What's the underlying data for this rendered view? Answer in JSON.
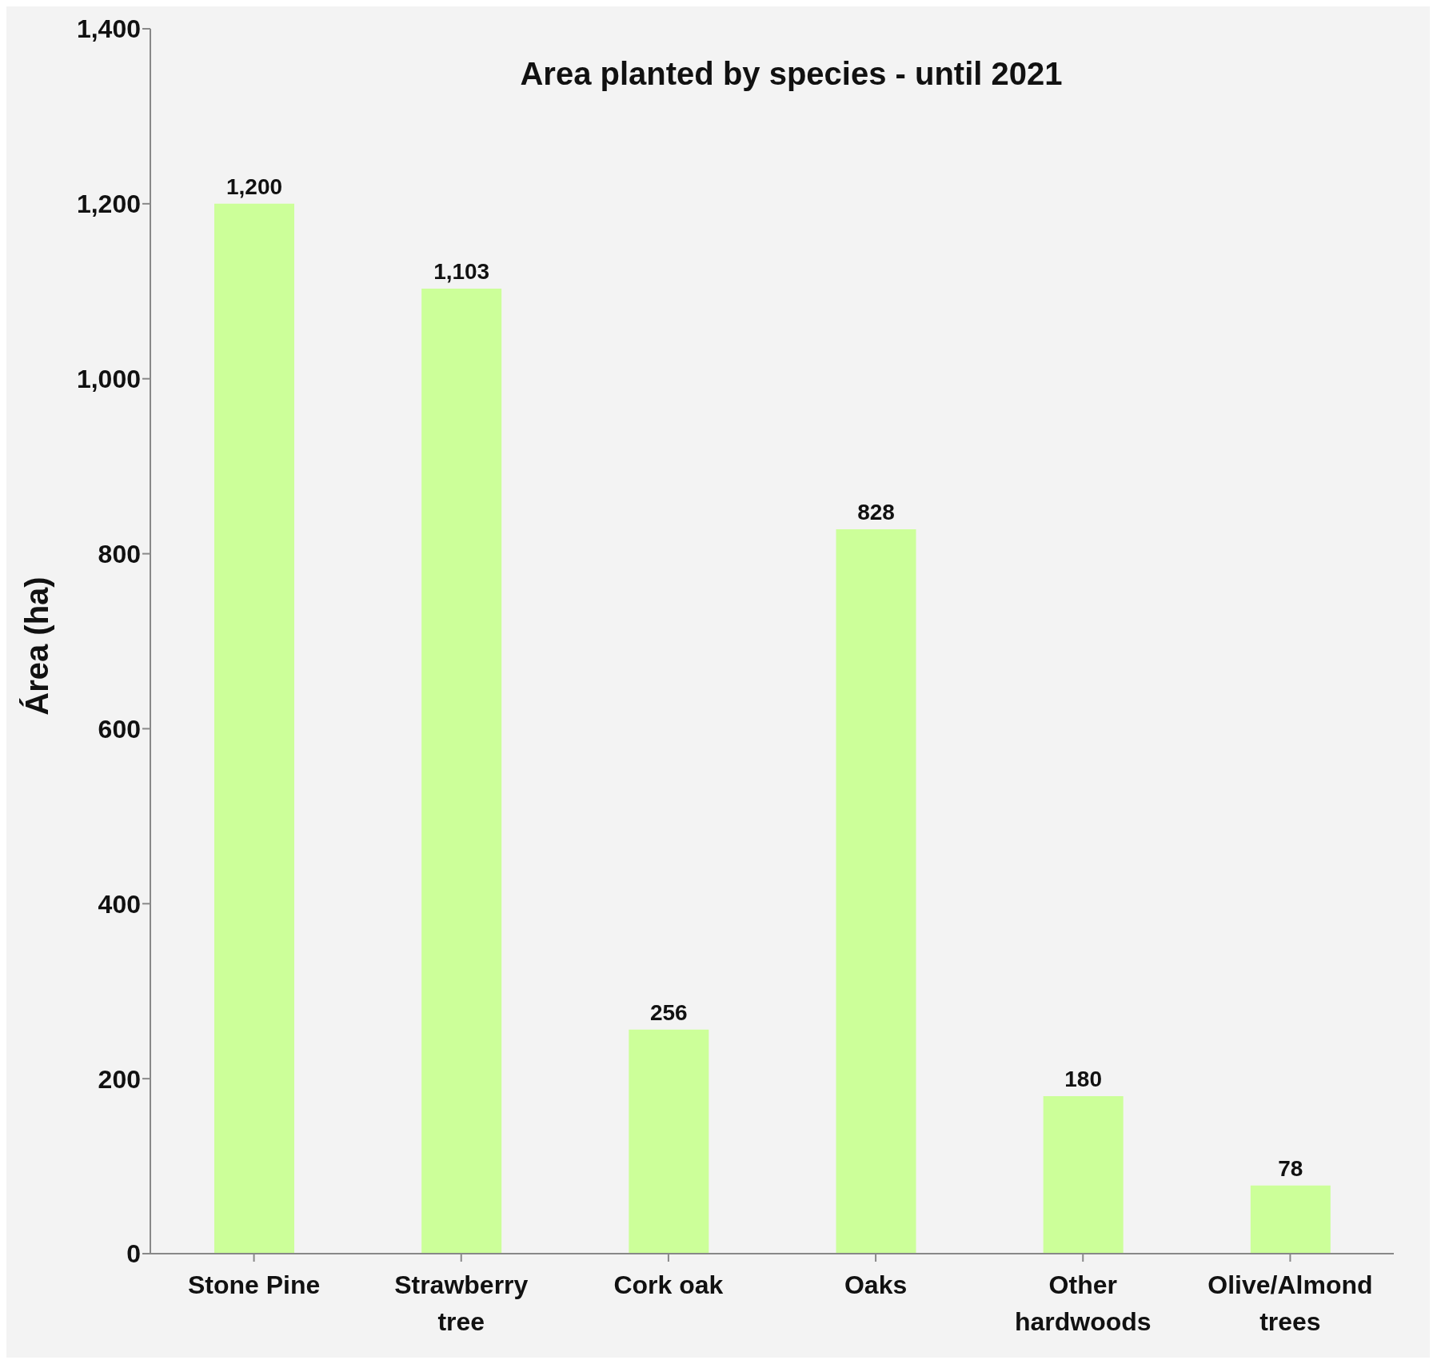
{
  "chart_data": {
    "type": "bar",
    "title": "Area planted by species - until 2021",
    "ylabel": "Área (ha)",
    "categories": [
      "Stone Pine",
      "Strawberry tree",
      "Cork oak",
      "Oaks",
      "Other hardwoods",
      "Olive/Almond trees"
    ],
    "values": [
      1200,
      1103,
      256,
      828,
      180,
      78
    ],
    "color": "#ccff99",
    "value_labels": [
      "1,200",
      "1,103",
      "256",
      "828",
      "180",
      "78"
    ],
    "ylim": [
      0,
      1400
    ],
    "yticks": [
      0,
      200,
      400,
      600,
      800,
      {
        "value": 1000,
        "label": "1,000"
      },
      {
        "value": 1200,
        "label": "1,200"
      },
      {
        "value": 1400,
        "label": "1,400"
      }
    ],
    "grid": false,
    "legend": false
  }
}
